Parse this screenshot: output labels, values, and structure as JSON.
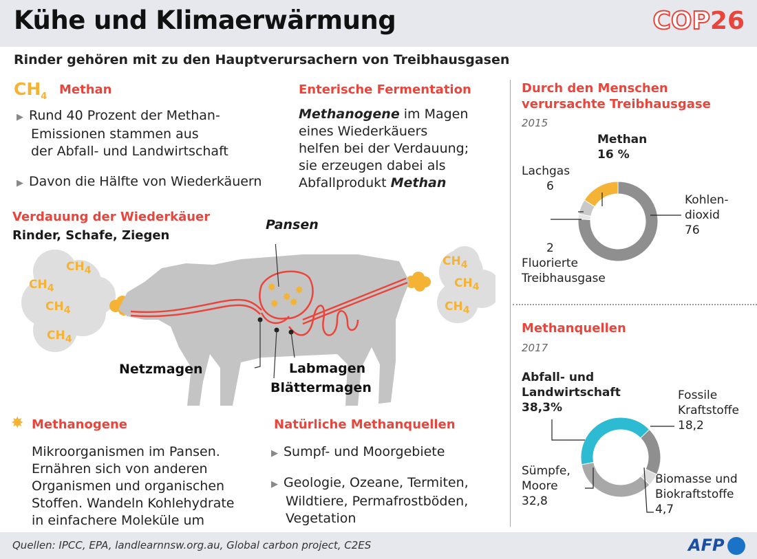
{
  "header": {
    "title": "Kühe und Klimaerwärmung",
    "cop_prefix": "COP",
    "cop_number": "26",
    "subtitle": "Rinder gehören mit zu den Hauptverursachern von Treibhausgasen"
  },
  "methane": {
    "formula": "CH",
    "formula_sub": "4",
    "heading": "Methan",
    "bullets": [
      [
        "Rund 40 Prozent der Methan-",
        "Emissionen stammen aus",
        "der Abfall- und Landwirtschaft"
      ],
      [
        "Davon die Hälfte von Wiederkäuern"
      ]
    ]
  },
  "fermentation": {
    "heading": "Enterische Fermentation",
    "lines": [
      {
        "italic": "Methanogene",
        "rest": " im Magen"
      },
      {
        "text": "eines Wiederkäuers"
      },
      {
        "text": "helfen bei der Verdauung;"
      },
      {
        "text": "sie erzeugen dabei als"
      },
      {
        "text": "Abfallprodukt ",
        "italic": "Methan"
      }
    ]
  },
  "digestion": {
    "heading": "Verdauung der Wiederkäuer",
    "subheading": "Rinder, Schafe, Ziegen",
    "labels": {
      "pansen": "Pansen",
      "netzmagen": "Netzmagen",
      "labmagen": "Labmagen",
      "blaettermagen": "Blättermagen"
    },
    "gas_label": "CH",
    "gas_sub": "4"
  },
  "methanogene": {
    "heading": "Methanogene",
    "lines": [
      "Mikroorganismen im Pansen.",
      "Ernähren sich von anderen",
      "Organismen und organischen",
      "Stoffen. Wandeln Kohlehydrate",
      "in einfachere Moleküle um"
    ]
  },
  "natural": {
    "heading": "Natürliche Methanquellen",
    "bullets": [
      [
        "Sumpf- und Moorgebiete"
      ],
      [
        "Geologie, Ozeane, Termiten,",
        "Wildtiere, Permafrostböden,",
        "Vegetation"
      ]
    ]
  },
  "chart_data": [
    {
      "type": "pie",
      "title": "Durch den Menschen verursachte Treibhausgase",
      "year": "2015",
      "slices": [
        {
          "label": "Methan",
          "value": 16,
          "display": "16 %",
          "color": "#f5b335"
        },
        {
          "label": "Kohlendioxid",
          "value": 76,
          "display": "76",
          "color": "#8f8f8f"
        },
        {
          "label": "Fluorierte Treibhausgase",
          "value": 2,
          "display": "2",
          "color": "#e6e6e6"
        },
        {
          "label": "Lachgas",
          "value": 6,
          "display": "6",
          "color": "#c9c9c9"
        }
      ],
      "text": {
        "methan_name": "Methan",
        "methan_value": "16 %",
        "lachgas_name": "Lachgas",
        "lachgas_value": "6",
        "co2_lines": [
          "Kohlen-",
          "dioxid",
          "76"
        ],
        "fluor_lines": [
          "2",
          "Fluorierte",
          "Treibhausgase"
        ]
      }
    },
    {
      "type": "pie",
      "title": "Methanquellen",
      "year": "2017",
      "slices": [
        {
          "label": "Abfall- und Landwirtschaft",
          "value": 38.3,
          "display": "38,3%",
          "color": "#2dbad3"
        },
        {
          "label": "Fossile Kraftstoffe",
          "value": 18.2,
          "display": "18,2",
          "color": "#8f8f8f"
        },
        {
          "label": "Biomasse und Biokraftstoffe",
          "value": 4.7,
          "display": "4,7",
          "color": "#dcdcdc"
        },
        {
          "label": "Sümpfe, Moore",
          "value": 32.8,
          "display": "32,8",
          "color": "#a8a8a8"
        }
      ],
      "text": {
        "agri_lines": [
          "Abfall- und",
          "Landwirtschaft",
          "38,3%"
        ],
        "fossil_lines": [
          "Fossile",
          "Kraftstoffe",
          "18,2"
        ],
        "bio_lines": [
          "Biomasse und",
          "Biokraftstoffe",
          "4,7"
        ],
        "swamp_lines": [
          "Sümpfe,",
          "Moore",
          "32,8"
        ]
      }
    }
  ],
  "footer": {
    "sources": "Quellen: IPCC, EPA, landlearnnsw.org.au, Global carbon project, C2ES",
    "agency": "AFP"
  }
}
